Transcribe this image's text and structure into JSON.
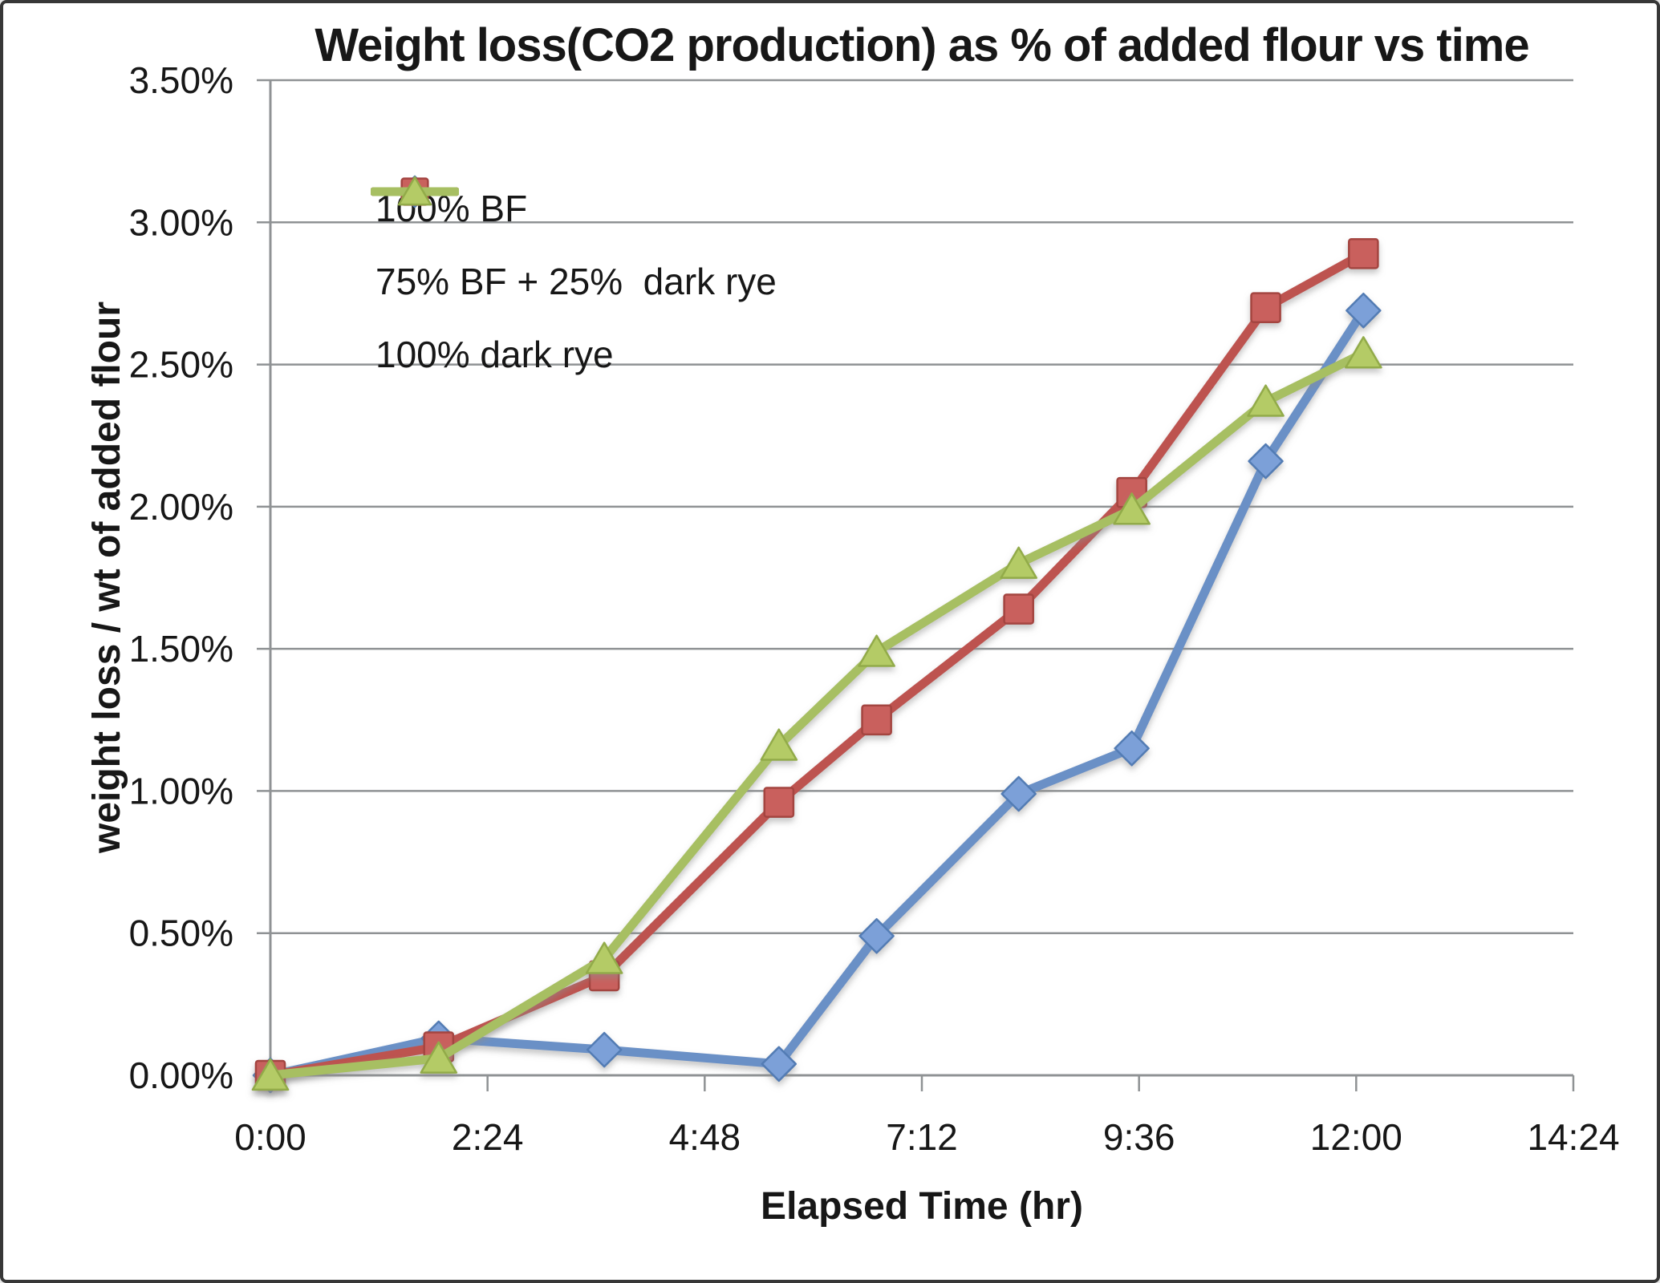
{
  "frame": {
    "background": "#ffffff",
    "border_color": "#373737"
  },
  "colors": {
    "grid": "#8f9294",
    "axis": "#8f9294",
    "text": "#171717"
  },
  "chart_data": {
    "type": "line",
    "title": "Weight loss(CO2 production) as % of added flour vs time",
    "xlabel": "Elapsed Time (hr)",
    "ylabel": "weight loss / wt of added flour",
    "grid": "horizontal",
    "legend_position": "upper-left-inside",
    "x_axis": {
      "min_hours": 0,
      "max_hours": 14.4,
      "tick_interval_hours": 2.4,
      "tick_labels": [
        "0:00",
        "2:24",
        "4:48",
        "7:12",
        "9:36",
        "12:00",
        "14:24"
      ]
    },
    "y_axis": {
      "min": 0,
      "max": 3.5,
      "tick_interval": 0.5,
      "tick_labels": [
        "0.00%",
        "0.50%",
        "1.00%",
        "1.50%",
        "2.00%",
        "2.50%",
        "3.00%",
        "3.50%"
      ]
    },
    "x_hours": [
      0,
      1.86,
      3.69,
      5.62,
      6.7,
      8.27,
      9.52,
      11.0,
      12.08
    ],
    "x_times": [
      "0:00",
      "1:52",
      "3:41",
      "5:37",
      "6:42",
      "8:16",
      "9:31",
      "11:00",
      "12:05"
    ],
    "series": [
      {
        "name": "100% BF",
        "marker": "diamond",
        "line_color": "#6a90c6",
        "marker_fill": "#7ba0d8",
        "marker_stroke": "#527cb4",
        "values": [
          0.0,
          0.13,
          0.09,
          0.04,
          0.49,
          0.99,
          1.15,
          2.16,
          2.69
        ]
      },
      {
        "name": "75% BF + 25%  dark rye",
        "marker": "square",
        "line_color": "#bd5350",
        "marker_fill": "#c9615d",
        "marker_stroke": "#a44441",
        "values": [
          0.0,
          0.1,
          0.35,
          0.96,
          1.25,
          1.64,
          2.05,
          2.7,
          2.89
        ]
      },
      {
        "name": "100% dark rye",
        "marker": "triangle",
        "line_color": "#a7bf62",
        "marker_fill": "#b4cb66",
        "marker_stroke": "#92ab49",
        "values": [
          0.0,
          0.06,
          0.41,
          1.16,
          1.49,
          1.8,
          1.99,
          2.37,
          2.54
        ]
      }
    ]
  }
}
